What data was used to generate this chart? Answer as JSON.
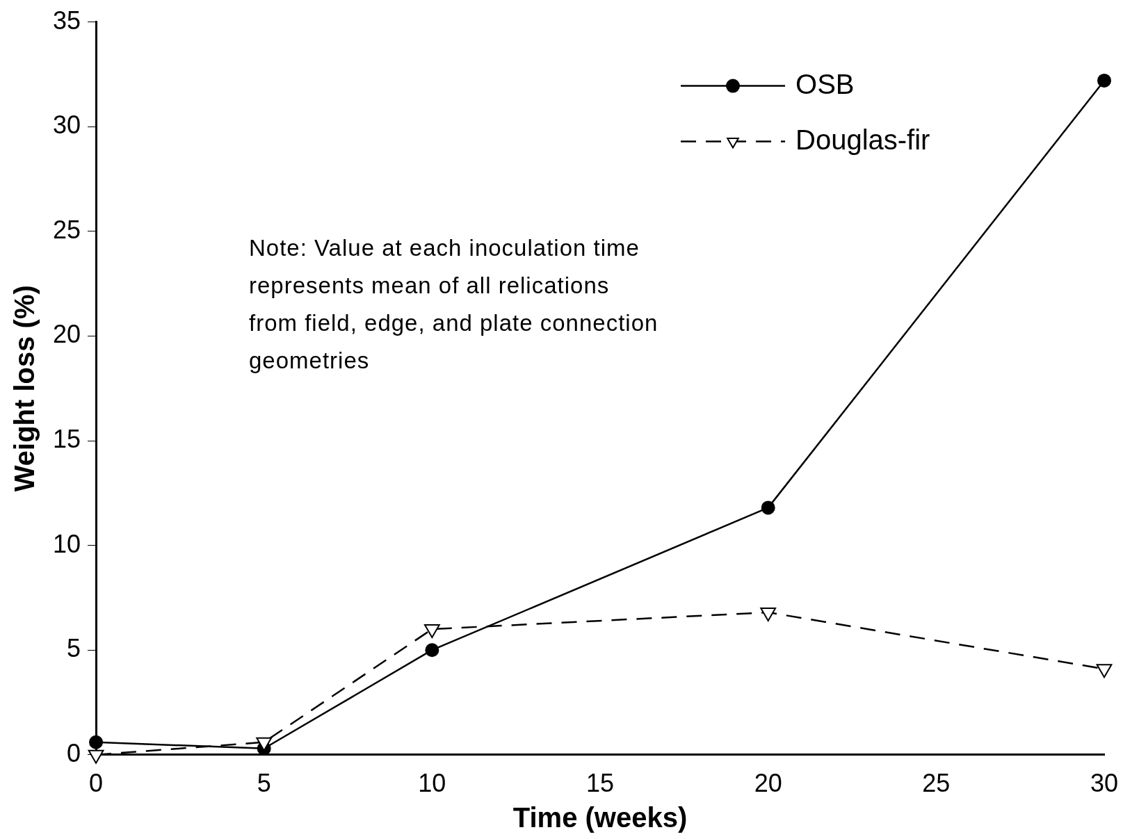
{
  "chart_data": {
    "type": "line",
    "xlabel": "Time (weeks)",
    "ylabel": "Weight loss (%)",
    "x": [
      0,
      5,
      10,
      20,
      30
    ],
    "series": [
      {
        "name": "OSB",
        "color": "#000000",
        "values": [
          0.6,
          0.3,
          5.0,
          11.8,
          32.2
        ],
        "marker": "circle",
        "line_style": "solid"
      },
      {
        "name": "Douglas-fir",
        "color": "#000000",
        "values": [
          0.0,
          0.6,
          6.0,
          6.8,
          4.1
        ],
        "marker": "triangle",
        "line_style": "dashed"
      }
    ],
    "xlim": [
      0,
      30
    ],
    "xticks": [
      0,
      5,
      10,
      15,
      20,
      25,
      30
    ],
    "ylim": [
      0,
      35
    ],
    "yticks": [
      0,
      5,
      10,
      15,
      20,
      25,
      30,
      35
    ],
    "grid": false,
    "legend": "top right",
    "annotations": [
      "Note:  Value at each inoculation time represents mean of all relications from field, edge, and plate connection geometries"
    ]
  }
}
